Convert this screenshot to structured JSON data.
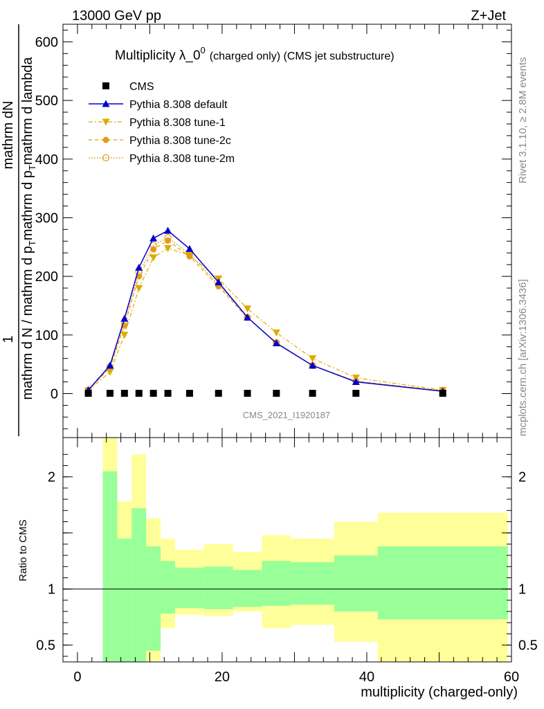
{
  "header": {
    "left": "13000 GeV pp",
    "right": "Z+Jet"
  },
  "side_texts": {
    "rivet": "Rivet 3.1.10, ≥ 2.8M events",
    "mcplots": "mcplots.cern.ch [arXiv:1306.3436]"
  },
  "watermark": "CMS_2021_I1920187",
  "colors": {
    "default": "#0000cc",
    "tune1": "#ddaa00",
    "tune2c": "#e59a1a",
    "tune2m": "#e59a1a",
    "band_inner": "#99ff99",
    "band_outer": "#ffff99"
  },
  "chart_data": [
    {
      "type": "line",
      "title_main": "Multiplicity λ_0",
      "title_sup": "0",
      "title_tail": "(charged only) (CMS jet substructure)",
      "ylabel_num": "1",
      "ylabel_num2": "mathrm dN",
      "ylabel_den": "mathrm d N / mathrm d p_T mathrm d p_T mathrm d lambda",
      "ylabel_den_line1": "mathrm d N / mathrm d p",
      "ylabel_den_sub": "T",
      "ylabel_den_line2": "mathrm d p",
      "ylabel_den_line3": "mathrm d lambda",
      "xlim": [
        -2,
        60
      ],
      "ylim": [
        -75,
        630
      ],
      "yticks": [
        0,
        100,
        200,
        300,
        400,
        500,
        600
      ],
      "legend_position": "top-left",
      "x": [
        1.5,
        4.5,
        6.5,
        8.5,
        10.5,
        12.5,
        15.5,
        19.5,
        23.5,
        27.5,
        32.5,
        38.5,
        50.5
      ],
      "series": [
        {
          "name": "CMS",
          "values": [
            0.5,
            0.5,
            0.5,
            0.5,
            0.5,
            0.5,
            0.5,
            0.5,
            0.5,
            0.5,
            0.5,
            0.5,
            0.5
          ]
        },
        {
          "name": "Pythia 8.308 default",
          "values": [
            6,
            48,
            128,
            215,
            265,
            278,
            247,
            190,
            130,
            86,
            48,
            20,
            4
          ]
        },
        {
          "name": "Pythia 8.308 tune-1",
          "values": [
            5,
            37,
            100,
            180,
            232,
            248,
            236,
            196,
            145,
            104,
            60,
            27,
            6
          ]
        },
        {
          "name": "Pythia 8.308 tune-2c",
          "values": [
            6,
            44,
            116,
            200,
            246,
            261,
            234,
            183,
            129,
            87,
            48,
            21,
            5
          ]
        },
        {
          "name": "Pythia 8.308 tune-2m",
          "values": [
            6,
            46,
            122,
            207,
            253,
            266,
            238,
            186,
            130,
            87,
            48,
            21,
            5
          ]
        }
      ]
    },
    {
      "type": "area",
      "ylabel": "Ratio to CMS",
      "xlabel": "multiplicity (charged-only)",
      "xlim": [
        -2,
        60
      ],
      "ylim": [
        0.35,
        2.35
      ],
      "xticks": [
        0,
        20,
        40,
        60
      ],
      "yticks": [
        0.5,
        1,
        2
      ],
      "bin_edges": [
        3.5,
        5.5,
        7.5,
        9.5,
        11.5,
        13.5,
        17.5,
        21.5,
        25.5,
        29.5,
        35.5,
        41.5,
        59.5
      ],
      "inner_band": [
        [
          0.0,
          2.05
        ],
        [
          0.0,
          1.45
        ],
        [
          0.0,
          1.72
        ],
        [
          0.45,
          1.38
        ],
        [
          0.78,
          1.25
        ],
        [
          0.83,
          1.19
        ],
        [
          0.82,
          1.2
        ],
        [
          0.84,
          1.17
        ],
        [
          0.85,
          1.25
        ],
        [
          0.86,
          1.24
        ],
        [
          0.8,
          1.3
        ],
        [
          0.73,
          1.38
        ]
      ],
      "outer_band": [
        [
          0.0,
          2.4
        ],
        [
          0.68,
          1.78
        ],
        [
          0.0,
          2.2
        ],
        [
          0.36,
          1.63
        ],
        [
          0.65,
          1.45
        ],
        [
          0.77,
          1.35
        ],
        [
          0.76,
          1.4
        ],
        [
          0.8,
          1.33
        ],
        [
          0.65,
          1.48
        ],
        [
          0.68,
          1.45
        ],
        [
          0.53,
          1.6
        ],
        [
          0.35,
          1.68
        ]
      ]
    }
  ]
}
